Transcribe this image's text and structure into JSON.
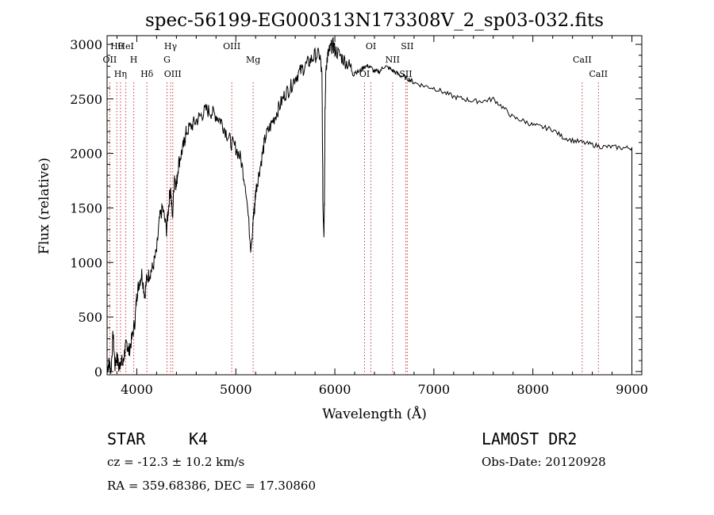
{
  "chart_data": {
    "type": "line",
    "title": "spec-56199-EG000313N173308V_2_sp03-032.fits",
    "xlabel": "Wavelength (Å)",
    "ylabel": "Flux (relative)",
    "xlim": [
      3700,
      9100
    ],
    "ylim": [
      -30,
      3080
    ],
    "x_ticks": [
      4000,
      5000,
      6000,
      7000,
      8000,
      9000
    ],
    "y_ticks": [
      0,
      500,
      1000,
      1500,
      2000,
      2500,
      3000
    ],
    "grid": false,
    "series": [
      {
        "name": "flux",
        "x": [
          3700,
          3720,
          3740,
          3760,
          3780,
          3800,
          3820,
          3840,
          3860,
          3880,
          3900,
          3920,
          3950,
          3980,
          4000,
          4020,
          4050,
          4080,
          4100,
          4130,
          4160,
          4200,
          4230,
          4260,
          4300,
          4320,
          4340,
          4360,
          4380,
          4400,
          4420,
          4450,
          4480,
          4500,
          4550,
          4600,
          4650,
          4700,
          4750,
          4800,
          4850,
          4900,
          4950,
          5000,
          5050,
          5100,
          5150,
          5170,
          5180,
          5190,
          5200,
          5230,
          5270,
          5300,
          5350,
          5400,
          5450,
          5500,
          5550,
          5600,
          5650,
          5700,
          5750,
          5800,
          5850,
          5870,
          5880,
          5890,
          5895,
          5900,
          5910,
          5930,
          5950,
          5980,
          6000,
          6050,
          6100,
          6150,
          6200,
          6250,
          6300,
          6350,
          6400,
          6450,
          6500,
          6550,
          6600,
          6650,
          6700,
          6750,
          6800,
          6900,
          7000,
          7100,
          7200,
          7300,
          7400,
          7500,
          7600,
          7700,
          7800,
          7900,
          8000,
          8100,
          8200,
          8300,
          8400,
          8500,
          8600,
          8700,
          8800,
          8900,
          9000
        ],
        "y": [
          30,
          80,
          10,
          350,
          50,
          150,
          20,
          120,
          60,
          200,
          260,
          180,
          300,
          450,
          700,
          800,
          900,
          700,
          850,
          900,
          950,
          1100,
          1400,
          1500,
          1300,
          1500,
          1700,
          1400,
          1800,
          1700,
          1900,
          2000,
          2100,
          2200,
          2250,
          2300,
          2350,
          2400,
          2380,
          2350,
          2300,
          2200,
          2100,
          2050,
          1950,
          1700,
          1150,
          1300,
          1450,
          1500,
          1650,
          1800,
          2000,
          2150,
          2250,
          2350,
          2450,
          2550,
          2600,
          2700,
          2750,
          2800,
          2850,
          2900,
          2900,
          2700,
          1500,
          1280,
          1600,
          2300,
          2800,
          2900,
          2950,
          3000,
          2950,
          2900,
          2850,
          2800,
          2750,
          2750,
          2800,
          2800,
          2750,
          2750,
          2800,
          2780,
          2750,
          2720,
          2700,
          2680,
          2650,
          2620,
          2600,
          2560,
          2520,
          2500,
          2480,
          2480,
          2500,
          2420,
          2330,
          2300,
          2260,
          2240,
          2220,
          2150,
          2120,
          2100,
          2080,
          2060,
          2060,
          2050,
          2050
        ]
      }
    ],
    "lines": [
      {
        "label": "Hθ",
        "wavelength": 3798
      },
      {
        "label": "OII",
        "wavelength": 3727
      },
      {
        "label": "Hη",
        "wavelength": 3835
      },
      {
        "label": "HeI",
        "wavelength": 3889
      },
      {
        "label": "H",
        "wavelength": 3969
      },
      {
        "label": "Hδ",
        "wavelength": 4102
      },
      {
        "label": "Hγ",
        "wavelength": 4341
      },
      {
        "label": "G",
        "wavelength": 4305
      },
      {
        "label": "OIII",
        "wavelength": 4363
      },
      {
        "label": "OIII",
        "wavelength": 4959
      },
      {
        "label": "Mg",
        "wavelength": 5175
      },
      {
        "label": "OI",
        "wavelength": 6300
      },
      {
        "label": "OI",
        "wavelength": 6364
      },
      {
        "label": "NII",
        "wavelength": 6583
      },
      {
        "label": "SII",
        "wavelength": 6716
      },
      {
        "label": "SII",
        "wavelength": 6731
      },
      {
        "label": "CaII",
        "wavelength": 8498
      },
      {
        "label": "CaII",
        "wavelength": 8662
      }
    ]
  },
  "info": {
    "object_class": "STAR",
    "subclass": "K4",
    "survey": "LAMOST DR2",
    "redshift": "cz = -12.3 ± 10.2 km/s",
    "obs_date": "Obs-Date: 20120928",
    "coordinates": "RA = 359.68386, DEC =  17.30860"
  }
}
